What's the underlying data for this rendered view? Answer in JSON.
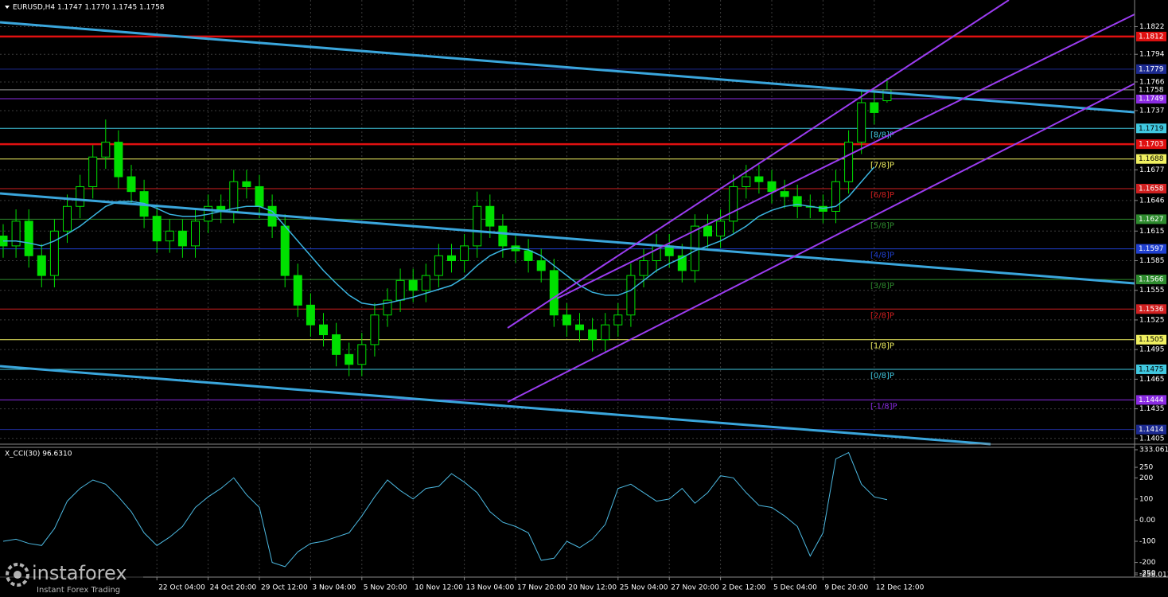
{
  "chart_data": [
    {
      "type": "candlestick",
      "title": "EURUSD,H4  1.1747 1.1770 1.1745 1.1758",
      "categories": [
        null,
        null,
        null,
        null,
        null,
        null,
        null,
        null,
        null,
        null,
        null,
        null,
        "22 Oct 04:00",
        null,
        null,
        null,
        "24 Oct 20:00",
        null,
        null,
        null,
        "29 Oct 12:00",
        null,
        null,
        null,
        "3 Nov 04:00",
        null,
        null,
        null,
        "5 Nov 20:00",
        null,
        null,
        null,
        "10 Nov 12:00",
        null,
        null,
        null,
        "13 Nov 04:00",
        null,
        null,
        null,
        "17 Nov 20:00",
        null,
        null,
        null,
        "20 Nov 12:00",
        null,
        null,
        null,
        "25 Nov 04:00",
        null,
        null,
        null,
        "27 Nov 20:00",
        null,
        null,
        null,
        "2 Dec 12:00",
        null,
        null,
        null,
        "5 Dec 04:00",
        null,
        null,
        null,
        "9 Dec 20:00",
        null,
        null,
        null,
        "12 Dec 12:00",
        null
      ],
      "open": [
        1.161,
        1.16,
        1.1625,
        1.159,
        1.157,
        1.1615,
        1.164,
        1.166,
        1.169,
        1.1705,
        1.167,
        1.1655,
        1.163,
        1.1605,
        1.1615,
        1.16,
        1.1625,
        1.164,
        1.1635,
        1.1665,
        1.166,
        1.164,
        1.162,
        1.157,
        1.154,
        1.152,
        1.151,
        1.149,
        1.148,
        1.15,
        1.153,
        1.1545,
        1.1565,
        1.1555,
        1.157,
        1.159,
        1.1585,
        1.16,
        1.164,
        1.162,
        1.16,
        1.1595,
        1.1585,
        1.1575,
        1.153,
        1.152,
        1.1515,
        1.1505,
        1.152,
        1.153,
        1.157,
        1.1585,
        1.16,
        1.159,
        1.1575,
        1.162,
        1.161,
        1.1625,
        1.166,
        1.167,
        1.1665,
        1.1655,
        1.165,
        1.164,
        1.164,
        1.1635,
        1.1665,
        1.1705,
        1.1745,
        1.1747
      ],
      "high": [
        1.1622,
        1.1637,
        1.1637,
        1.1602,
        1.1627,
        1.1652,
        1.1672,
        1.1702,
        1.1728,
        1.1717,
        1.1682,
        1.1667,
        1.1642,
        1.1627,
        1.1627,
        1.1637,
        1.1652,
        1.1652,
        1.1677,
        1.1677,
        1.1672,
        1.1652,
        1.1632,
        1.1582,
        1.1552,
        1.1532,
        1.1522,
        1.1502,
        1.1512,
        1.1542,
        1.1557,
        1.1577,
        1.1577,
        1.1582,
        1.1602,
        1.1602,
        1.1612,
        1.1655,
        1.1652,
        1.1632,
        1.1612,
        1.1607,
        1.1597,
        1.1587,
        1.1542,
        1.1532,
        1.1527,
        1.1532,
        1.1542,
        1.1582,
        1.1597,
        1.1612,
        1.1612,
        1.1602,
        1.1632,
        1.1632,
        1.1637,
        1.1672,
        1.1682,
        1.1682,
        1.1677,
        1.1667,
        1.1662,
        1.1652,
        1.1652,
        1.1677,
        1.1717,
        1.1757,
        1.1757,
        1.177
      ],
      "low": [
        1.1588,
        1.1588,
        1.1578,
        1.1558,
        1.1558,
        1.1603,
        1.1628,
        1.1648,
        1.1678,
        1.1658,
        1.1643,
        1.1618,
        1.1593,
        1.1593,
        1.1588,
        1.1588,
        1.1613,
        1.1623,
        1.1623,
        1.1648,
        1.1628,
        1.1608,
        1.1558,
        1.1528,
        1.1508,
        1.1498,
        1.1478,
        1.1468,
        1.1468,
        1.1488,
        1.1518,
        1.1533,
        1.1543,
        1.1543,
        1.1558,
        1.1573,
        1.1573,
        1.1588,
        1.1608,
        1.1588,
        1.1583,
        1.1573,
        1.1563,
        1.1518,
        1.1508,
        1.1503,
        1.1493,
        1.1493,
        1.1508,
        1.1518,
        1.1558,
        1.1573,
        1.1578,
        1.1563,
        1.1563,
        1.1598,
        1.1598,
        1.1613,
        1.1648,
        1.1653,
        1.1643,
        1.1638,
        1.1628,
        1.1628,
        1.1623,
        1.1623,
        1.1653,
        1.1693,
        1.1723,
        1.1745
      ],
      "close": [
        1.16,
        1.1625,
        1.159,
        1.157,
        1.1615,
        1.164,
        1.166,
        1.169,
        1.1705,
        1.167,
        1.1655,
        1.163,
        1.1605,
        1.1615,
        1.16,
        1.1625,
        1.164,
        1.1635,
        1.1665,
        1.166,
        1.164,
        1.162,
        1.157,
        1.154,
        1.152,
        1.151,
        1.149,
        1.148,
        1.15,
        1.153,
        1.1545,
        1.1565,
        1.1555,
        1.157,
        1.159,
        1.1585,
        1.16,
        1.164,
        1.162,
        1.16,
        1.1595,
        1.1585,
        1.1575,
        1.153,
        1.152,
        1.1515,
        1.1505,
        1.152,
        1.153,
        1.157,
        1.1585,
        1.16,
        1.159,
        1.1575,
        1.162,
        1.161,
        1.1625,
        1.166,
        1.167,
        1.1665,
        1.1655,
        1.165,
        1.164,
        1.164,
        1.1635,
        1.1665,
        1.1705,
        1.1745,
        1.1735,
        1.1758
      ],
      "color": "#00e000",
      "series": [
        {
          "color": "#3ab4e0",
          "values": [
            1.1605,
            1.1605,
            1.1603,
            1.16,
            1.1605,
            1.1612,
            1.162,
            1.163,
            1.164,
            1.1645,
            1.1645,
            1.1643,
            1.1638,
            1.1632,
            1.163,
            1.163,
            1.1632,
            1.1635,
            1.1638,
            1.164,
            1.164,
            1.1635,
            1.162,
            1.1605,
            1.159,
            1.1575,
            1.1562,
            1.155,
            1.1542,
            1.154,
            1.1542,
            1.1545,
            1.1548,
            1.1552,
            1.1556,
            1.156,
            1.1568,
            1.158,
            1.159,
            1.1596,
            1.1598,
            1.1596,
            1.159,
            1.158,
            1.157,
            1.156,
            1.1553,
            1.155,
            1.155,
            1.1555,
            1.1565,
            1.1575,
            1.1582,
            1.1588,
            1.1595,
            1.16,
            1.1605,
            1.1612,
            1.162,
            1.163,
            1.1636,
            1.164,
            1.1642,
            1.164,
            1.1638,
            1.164,
            1.165,
            1.1665,
            1.168,
            null
          ]
        }
      ],
      "levels": [
        {
          "value": 1.1812,
          "color": "#e01010",
          "thick": true
        },
        {
          "value": 1.1779,
          "color": "#1c2a90"
        },
        {
          "value": 1.1749,
          "color": "#8a2be2"
        },
        {
          "value": 1.1719,
          "color": "#40c8e0",
          "tag": "[8/8]P"
        },
        {
          "value": 1.1703,
          "color": "#e01010",
          "thick": true
        },
        {
          "value": 1.1688,
          "color": "#f0f060",
          "tag": "[7/8]P"
        },
        {
          "value": 1.1658,
          "color": "#d02020",
          "tag": "[6/8]P"
        },
        {
          "value": 1.1627,
          "color": "#2e8b2e",
          "tag": "[5/8]P"
        },
        {
          "value": 1.1597,
          "color": "#2040d0",
          "tag": "[4/8]P"
        },
        {
          "value": 1.1566,
          "color": "#2e8b2e",
          "tag": "[3/8]P"
        },
        {
          "value": 1.1536,
          "color": "#d02020",
          "tag": "[2/8]P"
        },
        {
          "value": 1.1505,
          "color": "#f0f060",
          "tag": "[1/8]P"
        },
        {
          "value": 1.1475,
          "color": "#40c8e0",
          "tag": "[0/8]P"
        },
        {
          "value": 1.1444,
          "color": "#8a2be2",
          "tag": "[-1/8]P"
        },
        {
          "value": 1.1414,
          "color": "#1c2a90"
        }
      ],
      "ylim": [
        1.14,
        1.1849
      ],
      "yticks": [
        1.1822,
        1.1794,
        1.1766,
        1.1737,
        1.1677,
        1.1646,
        1.1615,
        1.1585,
        1.1555,
        1.1525,
        1.1495,
        1.1465,
        1.1435,
        1.1405
      ],
      "grid": true
    },
    {
      "type": "line",
      "title": "X_CCI(30) 96.6310",
      "color": "#4cb8e0",
      "values": [
        -100,
        -90,
        -110,
        -120,
        -40,
        90,
        150,
        190,
        170,
        110,
        40,
        -60,
        -120,
        -80,
        -30,
        60,
        110,
        150,
        200,
        120,
        60,
        -200,
        -220,
        -150,
        -110,
        -100,
        -80,
        -60,
        20,
        110,
        190,
        140,
        100,
        150,
        160,
        220,
        180,
        130,
        40,
        -10,
        -30,
        -60,
        -190,
        -180,
        -100,
        -130,
        -90,
        -20,
        150,
        170,
        130,
        90,
        100,
        150,
        80,
        130,
        210,
        200,
        130,
        70,
        60,
        20,
        -30,
        -170,
        -60,
        290,
        320,
        170,
        110,
        96.631
      ],
      "ylim": [
        -258.013,
        333.061
      ],
      "yticks": [
        333.061,
        250,
        200,
        100,
        {
          "value": 0,
          "label": "0.00"
        },
        -100,
        -200,
        -250,
        -258.013
      ]
    }
  ],
  "branding": {
    "name": "instaforex",
    "tagline": "Instant Forex Trading"
  }
}
